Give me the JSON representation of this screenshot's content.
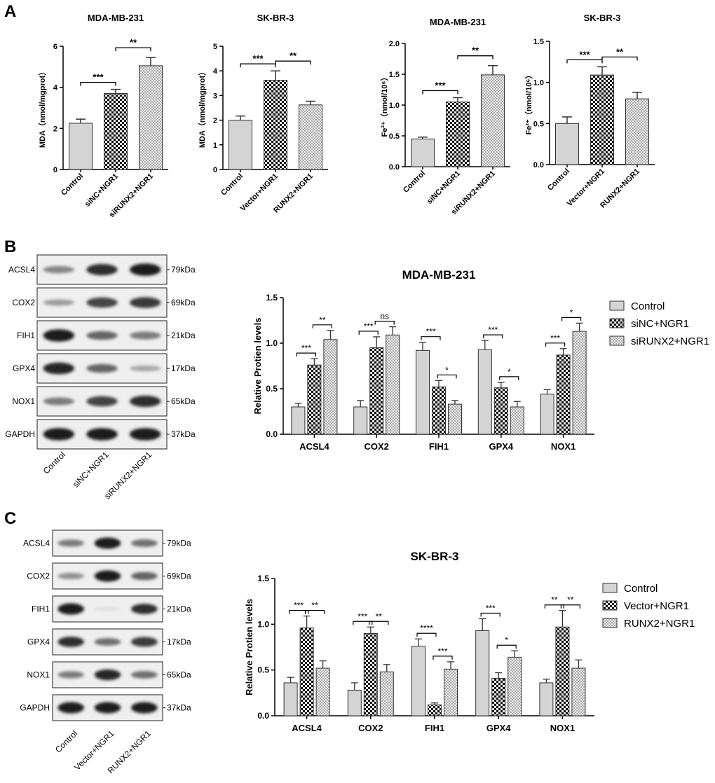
{
  "panels": {
    "A": "A",
    "B": "B",
    "C": "C"
  },
  "colors": {
    "control": "#d4d4d4",
    "checker_dark": "#111111",
    "checker_light": "#e8e8e8",
    "bar_edge": "#222222"
  },
  "chart_data": [
    {
      "id": "A1",
      "type": "bar",
      "title": "MDA-MB-231",
      "ylabel": "MDA（nmol/mgprot）",
      "ylim": [
        0,
        6
      ],
      "yticks": [
        "0",
        "2",
        "4",
        "6"
      ],
      "categories": [
        "Control",
        "siNC+NGR1",
        "siRUNX2+NGR1"
      ],
      "values": [
        2.25,
        3.7,
        5.05
      ],
      "errors": [
        0.2,
        0.2,
        0.4
      ],
      "significance": [
        {
          "from": 0,
          "to": 1,
          "label": "***"
        },
        {
          "from": 1,
          "to": 2,
          "label": "**"
        }
      ]
    },
    {
      "id": "A2",
      "type": "bar",
      "title": "SK-BR-3",
      "ylabel": "MDA（nmol/mgprot）",
      "ylim": [
        0,
        5
      ],
      "yticks": [
        "0",
        "1",
        "2",
        "3",
        "4",
        "5"
      ],
      "categories": [
        "Control",
        "Vector+NGR1",
        "RUNX2+NGR1"
      ],
      "values": [
        2.0,
        3.62,
        2.62
      ],
      "errors": [
        0.17,
        0.38,
        0.15
      ],
      "significance": [
        {
          "from": 0,
          "to": 1,
          "label": "***"
        },
        {
          "from": 1,
          "to": 2,
          "label": "**"
        }
      ]
    },
    {
      "id": "A3",
      "type": "bar",
      "title": "MDA-MB-231",
      "ylabel": "Fe²⁺（nmol/10⁶）",
      "ylim": [
        0,
        2
      ],
      "yticks": [
        "0.0",
        "0.5",
        "1.0",
        "1.5",
        "2.0"
      ],
      "categories": [
        "Control",
        "siNC+NGR1",
        "siRUNX2+NGR1"
      ],
      "values": [
        0.45,
        1.05,
        1.49
      ],
      "errors": [
        0.03,
        0.07,
        0.15
      ],
      "significance": [
        {
          "from": 0,
          "to": 1,
          "label": "***"
        },
        {
          "from": 1,
          "to": 2,
          "label": "**"
        }
      ]
    },
    {
      "id": "A4",
      "type": "bar",
      "title": "SK-BR-3",
      "ylabel": "Fe²⁺（nmol/10⁶）",
      "ylim": [
        0,
        1.5
      ],
      "yticks": [
        "0.0",
        "0.5",
        "1.0",
        "1.5"
      ],
      "categories": [
        "Control",
        "Vector+NGR1",
        "RUNX2+NGR1"
      ],
      "values": [
        0.5,
        1.09,
        0.8
      ],
      "errors": [
        0.08,
        0.1,
        0.08
      ],
      "significance": [
        {
          "from": 0,
          "to": 1,
          "label": "***"
        },
        {
          "from": 1,
          "to": 2,
          "label": "**"
        }
      ]
    },
    {
      "id": "B",
      "type": "bar",
      "title": "MDA-MB-231",
      "ylabel": "Relative Protien levels",
      "ylim": [
        0,
        1.5
      ],
      "yticks": [
        "0.0",
        "0.5",
        "1.0",
        "1.5"
      ],
      "categories": [
        "ACSL4",
        "COX2",
        "FIH1",
        "GPX4",
        "NOX1"
      ],
      "series": [
        {
          "name": "Control",
          "values": [
            0.3,
            0.3,
            0.92,
            0.93,
            0.44
          ],
          "errors": [
            0.04,
            0.07,
            0.09,
            0.1,
            0.05
          ]
        },
        {
          "name": "siNC+NGR1",
          "values": [
            0.76,
            0.95,
            0.52,
            0.51,
            0.87
          ],
          "errors": [
            0.07,
            0.12,
            0.07,
            0.06,
            0.07
          ]
        },
        {
          "name": "siRUNX2+NGR1",
          "values": [
            1.04,
            1.09,
            0.33,
            0.3,
            1.13
          ],
          "errors": [
            0.1,
            0.09,
            0.04,
            0.06,
            0.09
          ]
        }
      ],
      "significance": [
        {
          "cat": 0,
          "from": 0,
          "to": 1,
          "label": "***"
        },
        {
          "cat": 0,
          "from": 1,
          "to": 2,
          "label": "**"
        },
        {
          "cat": 1,
          "from": 0,
          "to": 1,
          "label": "***"
        },
        {
          "cat": 1,
          "from": 1,
          "to": 2,
          "label": "ns"
        },
        {
          "cat": 2,
          "from": 0,
          "to": 1,
          "label": "***"
        },
        {
          "cat": 2,
          "from": 1,
          "to": 2,
          "label": "*"
        },
        {
          "cat": 3,
          "from": 0,
          "to": 1,
          "label": "***"
        },
        {
          "cat": 3,
          "from": 1,
          "to": 2,
          "label": "*"
        },
        {
          "cat": 4,
          "from": 0,
          "to": 1,
          "label": "***"
        },
        {
          "cat": 4,
          "from": 1,
          "to": 2,
          "label": "*"
        }
      ],
      "legend_position": "right"
    },
    {
      "id": "C",
      "type": "bar",
      "title": "SK-BR-3",
      "ylabel": "Relative Protien levels",
      "ylim": [
        0,
        1.5
      ],
      "yticks": [
        "0.0",
        "0.5",
        "1.0",
        "1.5"
      ],
      "categories": [
        "ACSL4",
        "COX2",
        "FIH1",
        "GPX4",
        "NOX1"
      ],
      "series": [
        {
          "name": "Control",
          "values": [
            0.36,
            0.28,
            0.76,
            0.93,
            0.36
          ],
          "errors": [
            0.06,
            0.08,
            0.08,
            0.13,
            0.04
          ]
        },
        {
          "name": "Vector+NGR1",
          "values": [
            0.96,
            0.9,
            0.12,
            0.41,
            0.97
          ],
          "errors": [
            0.13,
            0.07,
            0.02,
            0.06,
            0.18
          ]
        },
        {
          "name": "RUNX2+NGR1",
          "values": [
            0.52,
            0.48,
            0.51,
            0.64,
            0.52
          ],
          "errors": [
            0.08,
            0.08,
            0.08,
            0.07,
            0.09
          ]
        }
      ],
      "significance": [
        {
          "cat": 0,
          "from": 0,
          "to": 1,
          "label": "***"
        },
        {
          "cat": 0,
          "from": 1,
          "to": 2,
          "label": "**"
        },
        {
          "cat": 1,
          "from": 0,
          "to": 1,
          "label": "***"
        },
        {
          "cat": 1,
          "from": 1,
          "to": 2,
          "label": "**"
        },
        {
          "cat": 2,
          "from": 0,
          "to": 1,
          "label": "****"
        },
        {
          "cat": 2,
          "from": 1,
          "to": 2,
          "label": "***"
        },
        {
          "cat": 3,
          "from": 0,
          "to": 1,
          "label": "***"
        },
        {
          "cat": 3,
          "from": 1,
          "to": 2,
          "label": "*"
        },
        {
          "cat": 4,
          "from": 0,
          "to": 1,
          "label": "**"
        },
        {
          "cat": 4,
          "from": 1,
          "to": 2,
          "label": "**"
        }
      ],
      "legend_position": "right"
    }
  ],
  "blots": [
    {
      "id": "B",
      "proteins": [
        "ACSL4",
        "COX2",
        "FIH1",
        "GPX4",
        "NOX1",
        "GAPDH"
      ],
      "sizes": [
        "79kDa",
        "69kDa",
        "21kDa",
        "17kDa",
        "65kDa",
        "37kDa"
      ],
      "lanes": [
        "Control",
        "siNC+NGR1",
        "siRUNX2+NGR1"
      ],
      "intensity": [
        [
          0.45,
          0.85,
          0.95
        ],
        [
          0.35,
          0.75,
          0.8
        ],
        [
          0.95,
          0.6,
          0.5
        ],
        [
          0.9,
          0.6,
          0.3
        ],
        [
          0.5,
          0.75,
          0.85
        ],
        [
          0.95,
          0.95,
          0.95
        ]
      ]
    },
    {
      "id": "C",
      "proteins": [
        "ACSL4",
        "COX2",
        "FIH1",
        "GPX4",
        "NOX1",
        "GAPDH"
      ],
      "sizes": [
        "79kDa",
        "69kDa",
        "21kDa",
        "17kDa",
        "65kDa",
        "37kDa"
      ],
      "lanes": [
        "Control",
        "Vector+NGR1",
        "RUNX2+NGR1"
      ],
      "intensity": [
        [
          0.5,
          0.95,
          0.55
        ],
        [
          0.4,
          0.95,
          0.6
        ],
        [
          0.95,
          0.05,
          0.85
        ],
        [
          0.85,
          0.55,
          0.8
        ],
        [
          0.5,
          0.9,
          0.55
        ],
        [
          0.95,
          0.95,
          0.95
        ]
      ]
    }
  ]
}
